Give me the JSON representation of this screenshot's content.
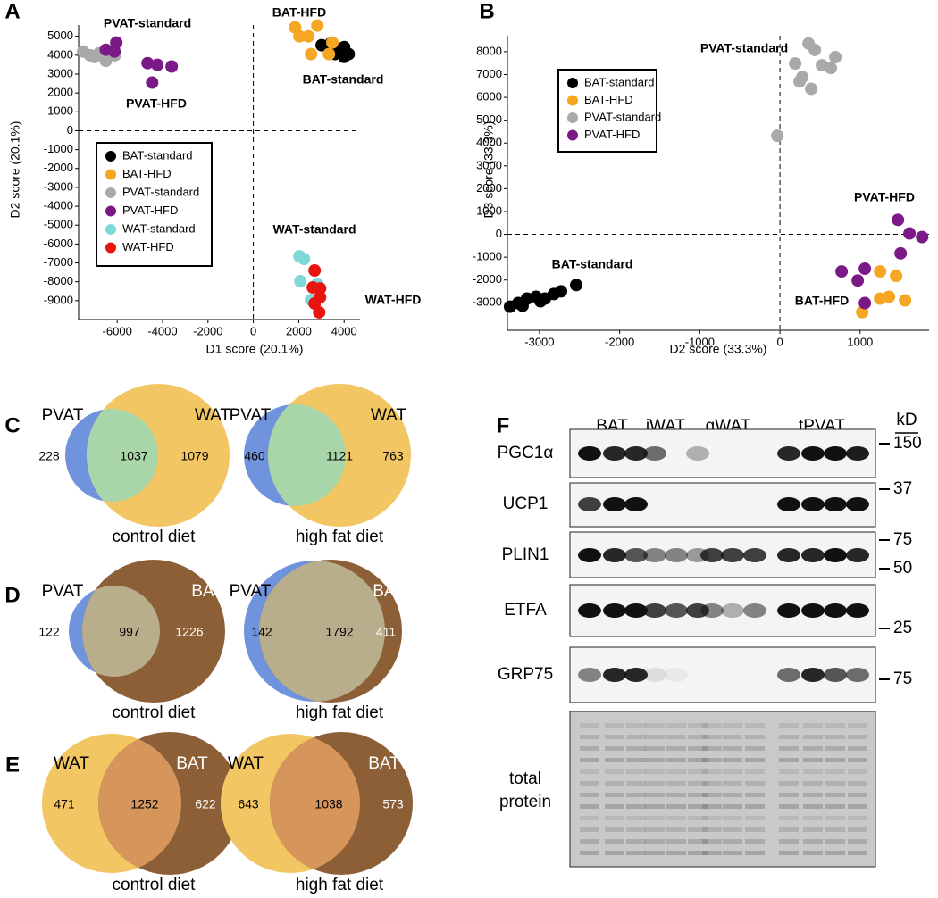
{
  "panel_labels": [
    "A",
    "B",
    "C",
    "D",
    "E",
    "F"
  ],
  "chart_data": [
    {
      "type": "scatter",
      "xlabel": "D1 score (20.1%)",
      "ylabel": "D2 score (20.1%)",
      "xlim": [
        -7700,
        4700
      ],
      "ylim": [
        -10000,
        5600
      ],
      "xticks": [
        -6000,
        -4000,
        -2000,
        0,
        2000,
        4000
      ],
      "yticks": [
        5000,
        4000,
        3000,
        2000,
        1000,
        0,
        -1000,
        -2000,
        -3000,
        -4000,
        -5000,
        -6000,
        -7000,
        -8000,
        -9000
      ],
      "zero_lines": true,
      "legend": "center left",
      "series": [
        {
          "name": "BAT-standard",
          "color": "#000000",
          "x": [
            3010,
            3410,
            3720,
            4000,
            4200,
            3600,
            4000
          ],
          "y": [
            4530,
            4620,
            4290,
            4430,
            4060,
            4060,
            3910
          ]
        },
        {
          "name": "BAT-HFD",
          "color": "#f5a623",
          "x": [
            1840,
            2820,
            2420,
            3480,
            2540,
            3330,
            2030
          ],
          "y": [
            5470,
            5570,
            5000,
            4670,
            4060,
            4060,
            5000
          ]
        },
        {
          "name": "PVAT-standard",
          "color": "#a9a9a9",
          "x": [
            -7500,
            -7200,
            -6800,
            -6500,
            -6100,
            -7000
          ],
          "y": [
            4200,
            4000,
            4100,
            3700,
            4000,
            3900
          ]
        },
        {
          "name": "PVAT-HFD",
          "color": "#7b1a87",
          "x": [
            -6040,
            -6120,
            -6500,
            -4660,
            -4230,
            -3600,
            -4460
          ],
          "y": [
            4670,
            4200,
            4290,
            3580,
            3490,
            3400,
            2550
          ]
        },
        {
          "name": "WAT-standard",
          "color": "#7fd8d8",
          "x": [
            2030,
            2230,
            2070,
            2540,
            2820
          ],
          "y": [
            -6650,
            -6790,
            -7970,
            -8960,
            -8110
          ]
        },
        {
          "name": "WAT-HFD",
          "color": "#e8150f",
          "x": [
            2700,
            2620,
            2940,
            2700,
            2900,
            2940
          ],
          "y": [
            -7400,
            -8300,
            -8350,
            -9150,
            -9620,
            -8820
          ]
        }
      ],
      "annotations": [
        "PVAT-standard",
        "PVAT-HFD",
        "BAT-HFD",
        "BAT-standard",
        "WAT-standard",
        "WAT-HFD"
      ]
    },
    {
      "type": "scatter",
      "xlabel": "D2 score (33.3%)",
      "ylabel": "D3 score (33.3%)",
      "xlim": [
        -3400,
        1860
      ],
      "ylim": [
        -4200,
        8700
      ],
      "xticks": [
        -3000,
        -2000,
        -1000,
        0,
        1000
      ],
      "yticks": [
        8000,
        7000,
        6000,
        5000,
        4000,
        3000,
        2000,
        1000,
        0,
        -1000,
        -2000,
        -3000
      ],
      "zero_lines": true,
      "legend": "upper left",
      "series": [
        {
          "name": "BAT-standard",
          "color": "#000000",
          "x": [
            -3367,
            -3266,
            -3155,
            -3043,
            -2932,
            -2821,
            -2731,
            -2542,
            -3211,
            -2988
          ],
          "y": [
            -3168,
            -3010,
            -2812,
            -2733,
            -2812,
            -2614,
            -2495,
            -2218,
            -3128,
            -2930
          ]
        },
        {
          "name": "BAT-HFD",
          "color": "#f5a623",
          "x": [
            1026,
            1249,
            1360,
            1561,
            1249,
            1449
          ],
          "y": [
            -3406,
            -2812,
            -2733,
            -2891,
            -1624,
            -1822
          ]
        },
        {
          "name": "PVAT-standard",
          "color": "#a9a9a9",
          "x": [
            -33,
            357,
            435,
            190,
            524,
            279,
            691,
            635,
            390,
            245
          ],
          "y": [
            4317,
            8356,
            8079,
            7485,
            7406,
            6891,
            7762,
            7287,
            6376,
            6693
          ]
        },
        {
          "name": "PVAT-HFD",
          "color": "#7b1a87",
          "x": [
            1472,
            1616,
            1773,
            1505,
            769,
            1059,
            970,
            1059
          ],
          "y": [
            634,
            40,
            -119,
            -832,
            -1624,
            -1505,
            -2020,
            -3010
          ]
        }
      ],
      "annotations": [
        "PVAT-standard",
        "PVAT-HFD",
        "BAT-standard",
        "BAT-HFD"
      ]
    }
  ],
  "venn": [
    {
      "left": "PVAT",
      "right": "WAT",
      "diagrams": [
        {
          "left_only": 228,
          "both": 1037,
          "right_only": 1079,
          "caption": "control diet"
        },
        {
          "left_only": 460,
          "both": 1121,
          "right_only": 763,
          "caption": "high fat diet"
        }
      ]
    },
    {
      "left": "PVAT",
      "right": "BAT",
      "diagrams": [
        {
          "left_only": 122,
          "both": 997,
          "right_only": 1226,
          "caption": "control diet"
        },
        {
          "left_only": 142,
          "both": 1792,
          "right_only": 411,
          "caption": "high fat diet"
        }
      ]
    },
    {
      "left": "WAT",
      "right": "BAT",
      "diagrams": [
        {
          "left_only": 471,
          "both": 1252,
          "right_only": 622,
          "caption": "control diet"
        },
        {
          "left_only": 643,
          "both": 1038,
          "right_only": 573,
          "caption": "high fat diet"
        }
      ]
    }
  ],
  "blot": {
    "groups": [
      "BAT",
      "iWAT",
      "gWAT",
      "tPVAT"
    ],
    "unit": "kD",
    "proteins": [
      "PGC1α",
      "UCP1",
      "PLIN1",
      "ETFA",
      "GRP75"
    ],
    "markers": [
      150,
      37,
      75,
      50,
      25,
      75
    ],
    "loading_label": "total protein"
  }
}
